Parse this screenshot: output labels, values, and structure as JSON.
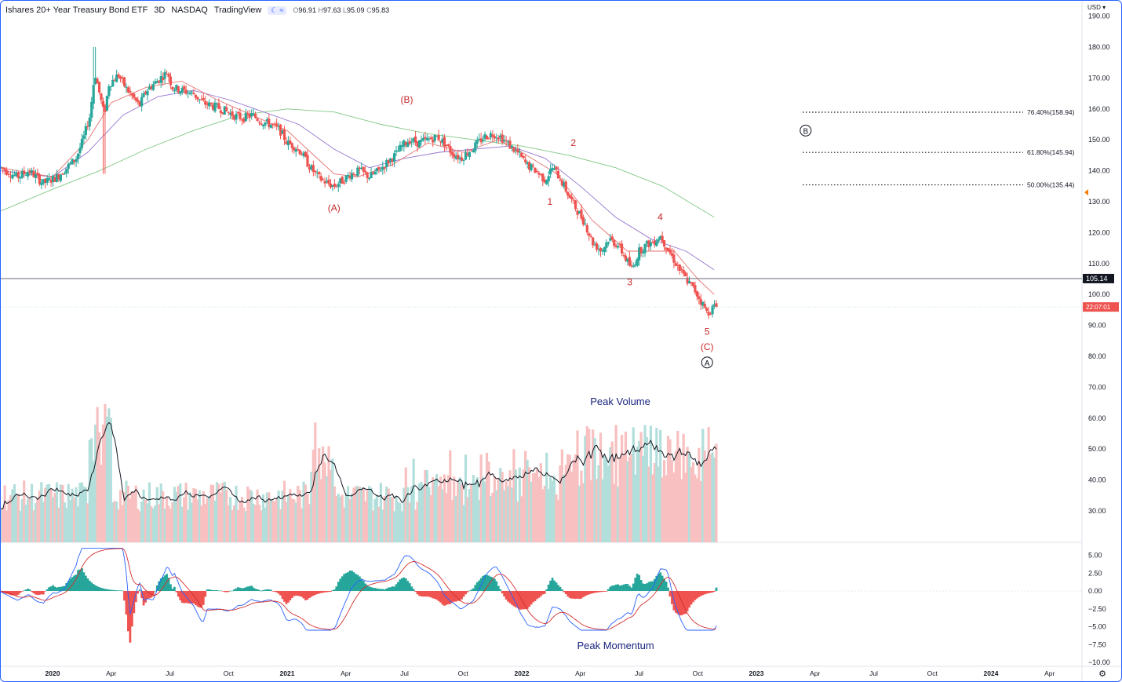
{
  "header": {
    "title": "Ishares 20+ Year Treasury Bond ETF",
    "interval": "3D",
    "exchange": "NASDAQ",
    "source": "TradingView",
    "badge": "≈",
    "open": "96.91",
    "high": "97.63",
    "low": "95.09",
    "close": "95.83",
    "open_prefix": "O",
    "high_prefix": "H",
    "low_prefix": "L",
    "close_prefix": "C"
  },
  "currency_label": "USD",
  "colors": {
    "up": "#26a69a",
    "down": "#ef5350",
    "up_vol": "#b2dfdb",
    "down_vol": "#f8c0c0",
    "ma_fast": "#e57373",
    "ma_mid": "#9575cd",
    "ma_slow": "#81c784",
    "macd": "#2962ff",
    "signal": "#d32f2f",
    "wave": "#c62828",
    "annot": "#1a237e"
  },
  "chart_data": {
    "type": "candlestick",
    "price_axis": {
      "ticks": [
        "190.00",
        "180.00",
        "170.00",
        "160.00",
        "150.00",
        "140.00",
        "130.00",
        "120.00",
        "110.00",
        "100.00",
        "90.00",
        "80.00",
        "70.00",
        "60.00",
        "50.00",
        "40.00",
        "30.00"
      ],
      "current_price": "105.14",
      "countdown": "22:07:01"
    },
    "indicator_axis": {
      "ticks": [
        "5.00",
        "2.50",
        "0.00",
        "−2.50",
        "−5.00",
        "−7.50",
        "−10.00"
      ]
    },
    "time_axis": [
      {
        "label": "2020",
        "bold": true,
        "t": 2020.0
      },
      {
        "label": "Apr",
        "bold": false,
        "t": 2020.25
      },
      {
        "label": "Jul",
        "bold": false,
        "t": 2020.5
      },
      {
        "label": "Oct",
        "bold": false,
        "t": 2020.75
      },
      {
        "label": "2021",
        "bold": true,
        "t": 2021.0
      },
      {
        "label": "Apr",
        "bold": false,
        "t": 2021.25
      },
      {
        "label": "Jul",
        "bold": false,
        "t": 2021.5
      },
      {
        "label": "Oct",
        "bold": false,
        "t": 2021.75
      },
      {
        "label": "2022",
        "bold": true,
        "t": 2022.0
      },
      {
        "label": "Apr",
        "bold": false,
        "t": 2022.25
      },
      {
        "label": "Jul",
        "bold": false,
        "t": 2022.5
      },
      {
        "label": "Oct",
        "bold": false,
        "t": 2022.75
      },
      {
        "label": "2023",
        "bold": true,
        "t": 2023.0
      },
      {
        "label": "Apr",
        "bold": false,
        "t": 2023.25
      },
      {
        "label": "Jul",
        "bold": false,
        "t": 2023.5
      },
      {
        "label": "Oct",
        "bold": false,
        "t": 2023.75
      },
      {
        "label": "2024",
        "bold": true,
        "t": 2024.0
      },
      {
        "label": "Apr",
        "bold": false,
        "t": 2024.25
      }
    ],
    "price_path": [
      [
        2019.78,
        141
      ],
      [
        2019.85,
        138
      ],
      [
        2019.9,
        140
      ],
      [
        2019.96,
        136
      ],
      [
        2020.02,
        138
      ],
      [
        2020.06,
        141
      ],
      [
        2020.1,
        144
      ],
      [
        2020.13,
        150
      ],
      [
        2020.16,
        158
      ],
      [
        2020.18,
        172
      ],
      [
        2020.2,
        165
      ],
      [
        2020.22,
        158
      ],
      [
        2020.24,
        168
      ],
      [
        2020.28,
        171
      ],
      [
        2020.31,
        167
      ],
      [
        2020.34,
        164
      ],
      [
        2020.37,
        161
      ],
      [
        2020.4,
        166
      ],
      [
        2020.43,
        168
      ],
      [
        2020.46,
        170
      ],
      [
        2020.49,
        172
      ],
      [
        2020.51,
        167
      ],
      [
        2020.55,
        166
      ],
      [
        2020.6,
        165
      ],
      [
        2020.64,
        162
      ],
      [
        2020.68,
        161
      ],
      [
        2020.72,
        160
      ],
      [
        2020.77,
        158
      ],
      [
        2020.81,
        157
      ],
      [
        2020.85,
        158
      ],
      [
        2020.89,
        156
      ],
      [
        2020.93,
        155
      ],
      [
        2020.97,
        153
      ],
      [
        2021.0,
        149
      ],
      [
        2021.03,
        148
      ],
      [
        2021.06,
        146
      ],
      [
        2021.09,
        142
      ],
      [
        2021.13,
        138
      ],
      [
        2021.17,
        136
      ],
      [
        2021.2,
        135
      ],
      [
        2021.24,
        137
      ],
      [
        2021.27,
        139
      ],
      [
        2021.31,
        140
      ],
      [
        2021.35,
        138
      ],
      [
        2021.39,
        140
      ],
      [
        2021.43,
        143
      ],
      [
        2021.46,
        145
      ],
      [
        2021.49,
        148
      ],
      [
        2021.52,
        150
      ],
      [
        2021.56,
        149
      ],
      [
        2021.6,
        150
      ],
      [
        2021.64,
        151
      ],
      [
        2021.67,
        149
      ],
      [
        2021.7,
        146
      ],
      [
        2021.74,
        144
      ],
      [
        2021.77,
        146
      ],
      [
        2021.8,
        148
      ],
      [
        2021.84,
        151
      ],
      [
        2021.88,
        152
      ],
      [
        2021.91,
        151
      ],
      [
        2021.95,
        148
      ],
      [
        2021.98,
        146
      ],
      [
        2022.02,
        142
      ],
      [
        2022.06,
        140
      ],
      [
        2022.1,
        137
      ],
      [
        2022.13,
        141
      ],
      [
        2022.16,
        138
      ],
      [
        2022.2,
        132
      ],
      [
        2022.23,
        128
      ],
      [
        2022.27,
        123
      ],
      [
        2022.3,
        117
      ],
      [
        2022.34,
        114
      ],
      [
        2022.37,
        118
      ],
      [
        2022.41,
        116
      ],
      [
        2022.44,
        112
      ],
      [
        2022.47,
        108
      ],
      [
        2022.5,
        114
      ],
      [
        2022.53,
        116
      ],
      [
        2022.56,
        117
      ],
      [
        2022.59,
        119
      ],
      [
        2022.62,
        115
      ],
      [
        2022.65,
        111
      ],
      [
        2022.68,
        107
      ],
      [
        2022.71,
        104
      ],
      [
        2022.74,
        101
      ],
      [
        2022.77,
        97
      ],
      [
        2022.79,
        94
      ],
      [
        2022.82,
        96
      ]
    ],
    "ma_fast": [
      [
        2019.78,
        141
      ],
      [
        2020.0,
        138
      ],
      [
        2020.15,
        150
      ],
      [
        2020.25,
        162
      ],
      [
        2020.4,
        167
      ],
      [
        2020.55,
        169
      ],
      [
        2020.7,
        163
      ],
      [
        2020.85,
        158
      ],
      [
        2021.0,
        153
      ],
      [
        2021.1,
        146
      ],
      [
        2021.2,
        139
      ],
      [
        2021.3,
        138
      ],
      [
        2021.45,
        142
      ],
      [
        2021.6,
        149
      ],
      [
        2021.75,
        146
      ],
      [
        2021.9,
        150
      ],
      [
        2022.0,
        146
      ],
      [
        2022.15,
        139
      ],
      [
        2022.3,
        124
      ],
      [
        2022.45,
        114
      ],
      [
        2022.55,
        114
      ],
      [
        2022.65,
        114
      ],
      [
        2022.75,
        105
      ],
      [
        2022.82,
        100
      ]
    ],
    "ma_mid": [
      [
        2019.78,
        140
      ],
      [
        2020.0,
        138
      ],
      [
        2020.15,
        146
      ],
      [
        2020.3,
        158
      ],
      [
        2020.45,
        164
      ],
      [
        2020.6,
        166
      ],
      [
        2020.75,
        163
      ],
      [
        2020.9,
        159
      ],
      [
        2021.05,
        155
      ],
      [
        2021.2,
        147
      ],
      [
        2021.35,
        141
      ],
      [
        2021.5,
        144
      ],
      [
        2021.65,
        146
      ],
      [
        2021.8,
        147
      ],
      [
        2021.95,
        148
      ],
      [
        2022.1,
        144
      ],
      [
        2022.25,
        135
      ],
      [
        2022.4,
        125
      ],
      [
        2022.55,
        118
      ],
      [
        2022.7,
        114
      ],
      [
        2022.82,
        108
      ]
    ],
    "ma_slow": [
      [
        2019.78,
        127
      ],
      [
        2020.0,
        134
      ],
      [
        2020.2,
        140
      ],
      [
        2020.4,
        147
      ],
      [
        2020.6,
        153
      ],
      [
        2020.8,
        158
      ],
      [
        2021.0,
        160
      ],
      [
        2021.2,
        159
      ],
      [
        2021.4,
        155
      ],
      [
        2021.6,
        152
      ],
      [
        2021.8,
        150
      ],
      [
        2022.0,
        148
      ],
      [
        2022.2,
        145
      ],
      [
        2022.4,
        141
      ],
      [
        2022.6,
        135
      ],
      [
        2022.82,
        125
      ]
    ],
    "volume_axis_note": "",
    "fib_levels": [
      {
        "label": "76.40%(158.94)",
        "value": 158.94
      },
      {
        "label": "61.80%(145.94)",
        "value": 145.94
      },
      {
        "label": "50.00%(135.44)",
        "value": 135.44
      }
    ],
    "waves": [
      {
        "text": "(A)",
        "t": 2021.2,
        "price": 127
      },
      {
        "text": "(B)",
        "t": 2021.51,
        "price": 162
      },
      {
        "text": "1",
        "t": 2022.12,
        "price": 129
      },
      {
        "text": "2",
        "t": 2022.22,
        "price": 148
      },
      {
        "text": "3",
        "t": 2022.46,
        "price": 103
      },
      {
        "text": "4",
        "t": 2022.59,
        "price": 124
      },
      {
        "text": "5",
        "t": 2022.79,
        "price": 87
      },
      {
        "text": "(C)",
        "t": 2022.79,
        "price": 82
      }
    ],
    "circled": [
      {
        "text": "A",
        "t": 2022.79,
        "price": 77
      },
      {
        "text": "B",
        "t": 2023.21,
        "price": 152
      }
    ],
    "annotations": [
      {
        "text": "Peak Volume",
        "t": 2022.42,
        "y": 515
      },
      {
        "text": "Peak Momentum",
        "t": 2022.4,
        "y": 826
      }
    ]
  }
}
